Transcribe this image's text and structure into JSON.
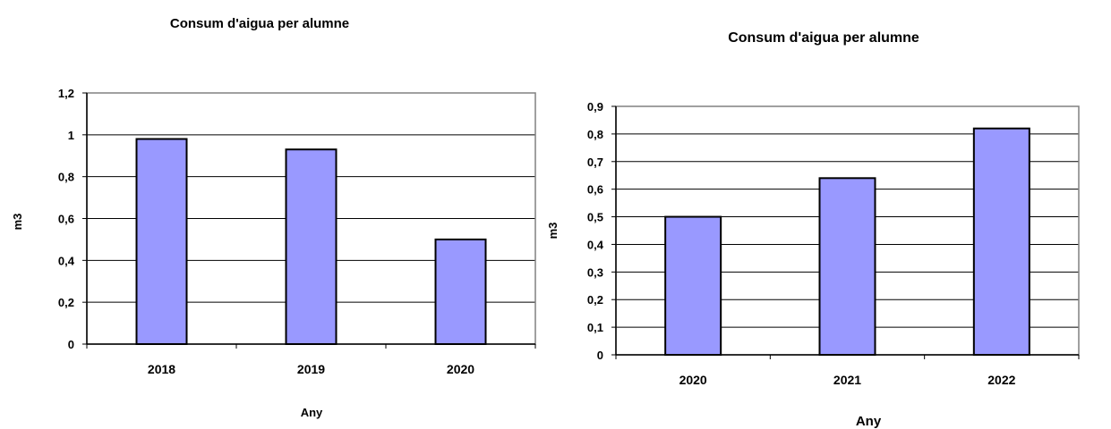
{
  "chart_data": [
    {
      "type": "bar",
      "title": "Consum d'aigua per alumne",
      "xlabel": "Any",
      "ylabel": "m3",
      "categories": [
        "2018",
        "2019",
        "2020"
      ],
      "values": [
        0.98,
        0.93,
        0.5
      ],
      "ylim": [
        0,
        1.2
      ],
      "yticks": [
        0,
        0.2,
        0.4,
        0.6,
        0.8,
        1,
        1.2
      ],
      "ytick_labels": [
        "0",
        "0,2",
        "0,4",
        "0,6",
        "0,8",
        "1",
        "1,2"
      ],
      "grid": true,
      "legend": "none",
      "bar_color": "#9999ff"
    },
    {
      "type": "bar",
      "title": "Consum d'aigua per alumne",
      "xlabel": "Any",
      "ylabel": "m3",
      "categories": [
        "2020",
        "2021",
        "2022"
      ],
      "values": [
        0.5,
        0.64,
        0.82
      ],
      "ylim": [
        0,
        0.9
      ],
      "yticks": [
        0,
        0.1,
        0.2,
        0.3,
        0.4,
        0.5,
        0.6,
        0.7,
        0.8,
        0.9
      ],
      "ytick_labels": [
        "0",
        "0,1",
        "0,2",
        "0,3",
        "0,4",
        "0,5",
        "0,6",
        "0,7",
        "0,8",
        "0,9"
      ],
      "grid": true,
      "legend": "none",
      "bar_color": "#9999ff"
    }
  ]
}
